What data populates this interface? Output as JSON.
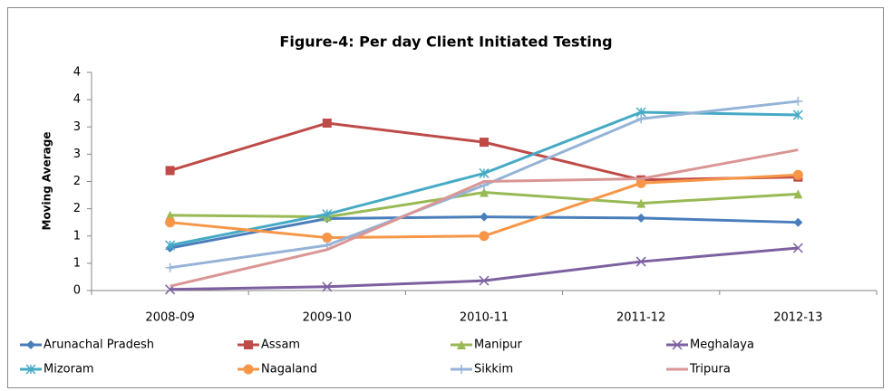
{
  "chart_data": {
    "type": "line",
    "title": "Figure-4: Per day Client Initiated Testing",
    "y_label": "Moving Average",
    "categories": [
      "2008-09",
      "2009-10",
      "2010-11",
      "2011-12",
      "2012-13"
    ],
    "ylim": [
      0,
      4
    ],
    "yticks": [
      0,
      {
        "value": 0.5,
        "label": "1"
      },
      1,
      {
        "value": 1.5,
        "label": "2"
      },
      2,
      {
        "value": 2.5,
        "label": "3"
      },
      3,
      {
        "value": 3.5,
        "label": "4"
      },
      4
    ],
    "legend": "bottom",
    "series": [
      {
        "name": "Arunachal Pradesh",
        "color": "#4a7ebb",
        "marker": "diamond",
        "values": [
          0.78,
          1.32,
          1.35,
          1.33,
          1.25
        ]
      },
      {
        "name": "Assam",
        "color": "#be4b48",
        "marker": "square",
        "values": [
          2.2,
          3.07,
          2.72,
          2.03,
          2.08
        ]
      },
      {
        "name": "Manipur",
        "color": "#98b954",
        "marker": "triangle",
        "values": [
          1.38,
          1.35,
          1.8,
          1.6,
          1.77
        ]
      },
      {
        "name": "Meghalaya",
        "color": "#7d60a0",
        "marker": "x",
        "values": [
          0.02,
          0.07,
          0.18,
          0.53,
          0.78
        ]
      },
      {
        "name": "Mizoram",
        "color": "#46aac5",
        "marker": "asterisk",
        "values": [
          0.83,
          1.4,
          2.15,
          3.27,
          3.22
        ]
      },
      {
        "name": "Nagaland",
        "color": "#f79646",
        "marker": "circle",
        "values": [
          1.25,
          0.97,
          1.0,
          1.97,
          2.12
        ]
      },
      {
        "name": "Sikkim",
        "color": "#95b3d7",
        "marker": "plus",
        "values": [
          0.42,
          0.83,
          1.93,
          3.15,
          3.47
        ]
      },
      {
        "name": "Tripura",
        "color": "#d99694",
        "marker": "none",
        "values": [
          0.08,
          0.75,
          2.0,
          2.05,
          2.58
        ]
      }
    ]
  }
}
